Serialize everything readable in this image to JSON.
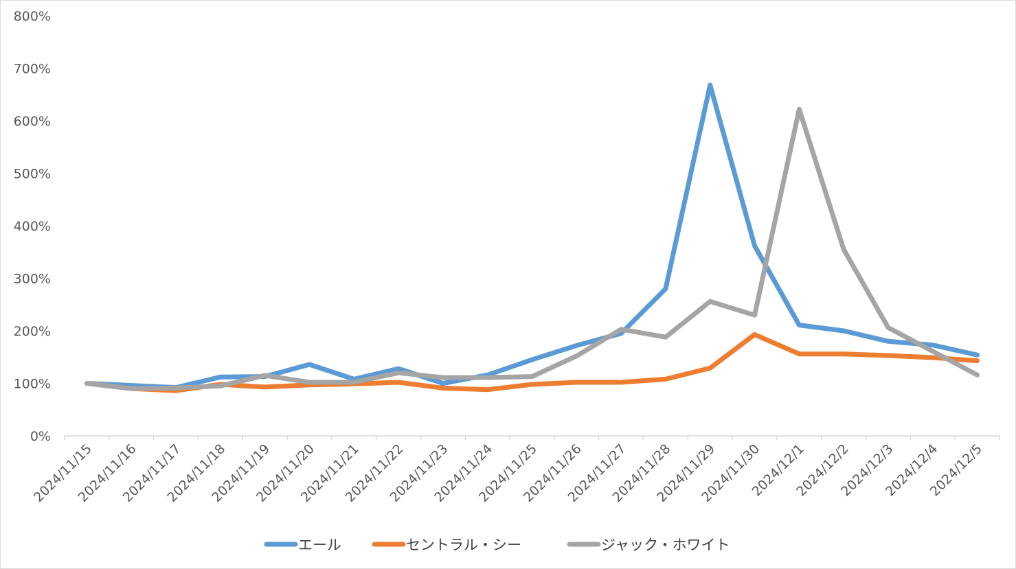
{
  "chart_data": {
    "type": "line",
    "title": "",
    "xlabel": "",
    "ylabel": "",
    "ylim": [
      0,
      800
    ],
    "y_ticks": [
      0,
      100,
      200,
      300,
      400,
      500,
      600,
      700,
      800
    ],
    "y_tick_labels": [
      "0%",
      "100%",
      "200%",
      "300%",
      "400%",
      "500%",
      "600%",
      "700%",
      "800%"
    ],
    "categories": [
      "2024/11/15",
      "2024/11/16",
      "2024/11/17",
      "2024/11/18",
      "2024/11/19",
      "2024/11/20",
      "2024/11/21",
      "2024/11/22",
      "2024/11/23",
      "2024/11/24",
      "2024/11/25",
      "2024/11/26",
      "2024/11/27",
      "2024/11/28",
      "2024/11/29",
      "2024/11/30",
      "2024/12/1",
      "2024/12/2",
      "2024/12/3",
      "2024/12/4",
      "2024/12/5"
    ],
    "grid": false,
    "legend_position": "bottom",
    "series": [
      {
        "name": "エール",
        "color": "#5b9bd5",
        "values": [
          100,
          96,
          92,
          112,
          113,
          136,
          108,
          128,
          100,
          116,
          145,
          172,
          195,
          280,
          668,
          362,
          211,
          200,
          180,
          173,
          154
        ]
      },
      {
        "name": "セントラル・シー",
        "color": "#ed7d31",
        "values": [
          100,
          90,
          86,
          98,
          93,
          97,
          99,
          102,
          91,
          88,
          98,
          102,
          102,
          108,
          129,
          193,
          156,
          156,
          153,
          149,
          143
        ]
      },
      {
        "name": "ジャック・ホワイト",
        "color": "#a5a5a5",
        "values": [
          100,
          90,
          91,
          95,
          115,
          102,
          102,
          120,
          111,
          111,
          113,
          152,
          203,
          188,
          256,
          230,
          622,
          355,
          206,
          161,
          116
        ]
      }
    ]
  }
}
